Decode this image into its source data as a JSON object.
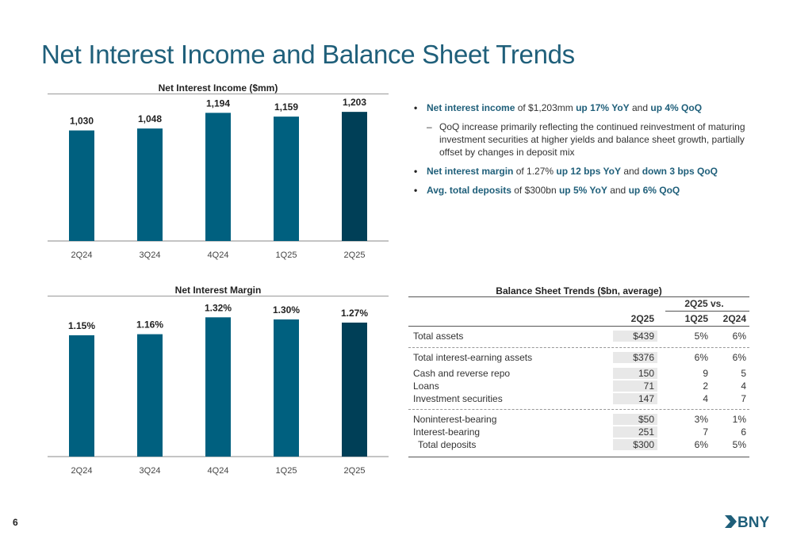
{
  "page_title": "Net Interest Income and Balance Sheet Trends",
  "page_number": "6",
  "logo_text": "BNY",
  "colors": {
    "bar": "#00607f",
    "bar_current": "#003f57",
    "accent": "#1f5f7a"
  },
  "chart_data": [
    {
      "type": "bar",
      "title": "Net Interest Income ($mm)",
      "categories": [
        "2Q24",
        "3Q24",
        "4Q24",
        "1Q25",
        "2Q25"
      ],
      "values": [
        1030,
        1048,
        1194,
        1159,
        1203
      ],
      "labels": [
        "1,030",
        "1,048",
        "1,194",
        "1,159",
        "1,203"
      ],
      "ylim": [
        0,
        1300
      ],
      "grid": false,
      "highlight_index": 4
    },
    {
      "type": "bar",
      "title": "Net Interest Margin",
      "categories": [
        "2Q24",
        "3Q24",
        "4Q24",
        "1Q25",
        "2Q25"
      ],
      "values": [
        1.15,
        1.16,
        1.32,
        1.3,
        1.27
      ],
      "labels": [
        "1.15%",
        "1.16%",
        "1.32%",
        "1.30%",
        "1.27%"
      ],
      "ylim": [
        0,
        1.45
      ],
      "grid": false,
      "highlight_index": 4
    }
  ],
  "bullets": [
    {
      "type": "main",
      "parts": [
        {
          "text": "Net interest income",
          "hl": true
        },
        {
          "text": " of $1,203mm ",
          "hl": false
        },
        {
          "text": "up 17% YoY",
          "hl": true
        },
        {
          "text": " and ",
          "hl": false
        },
        {
          "text": "up 4% QoQ",
          "hl": true
        }
      ]
    },
    {
      "type": "sub",
      "parts": [
        {
          "text": "QoQ increase primarily reflecting the continued reinvestment of maturing investment securities at higher yields and balance sheet growth, partially offset by changes in deposit mix",
          "hl": false
        }
      ]
    },
    {
      "type": "main",
      "parts": [
        {
          "text": "Net interest margin",
          "hl": true
        },
        {
          "text": " of 1.27% ",
          "hl": false
        },
        {
          "text": "up 12 bps YoY",
          "hl": true
        },
        {
          "text": " and ",
          "hl": false
        },
        {
          "text": "down 3 bps QoQ",
          "hl": true
        }
      ]
    },
    {
      "type": "main",
      "parts": [
        {
          "text": "Avg. total deposits",
          "hl": true
        },
        {
          "text": " of $300bn ",
          "hl": false
        },
        {
          "text": "up 5% YoY",
          "hl": true
        },
        {
          "text": " and ",
          "hl": false
        },
        {
          "text": "up 6% QoQ",
          "hl": true
        }
      ]
    }
  ],
  "balance_sheet": {
    "title": "Balance Sheet Trends ($bn, average)",
    "group_header": "2Q25 vs.",
    "columns": [
      "2Q25",
      "1Q25",
      "2Q24"
    ],
    "rows": [
      {
        "label": "Total assets",
        "v": "$439",
        "q": "5%",
        "y": "6%"
      },
      {
        "label": "Total interest-earning assets",
        "v": "$376",
        "q": "6%",
        "y": "6%"
      },
      {
        "label": "Cash and reverse repo",
        "v": "150",
        "q": "9",
        "y": "5"
      },
      {
        "label": "Loans",
        "v": "71",
        "q": "2",
        "y": "4"
      },
      {
        "label": "Investment securities",
        "v": "147",
        "q": "4",
        "y": "7"
      },
      {
        "label": "Noninterest-bearing",
        "v": "$50",
        "q": "3%",
        "y": "1%"
      },
      {
        "label": "Interest-bearing",
        "v": "251",
        "q": "7",
        "y": "6"
      },
      {
        "label": "Total deposits",
        "v": "$300",
        "q": "6%",
        "y": "5%"
      }
    ]
  }
}
